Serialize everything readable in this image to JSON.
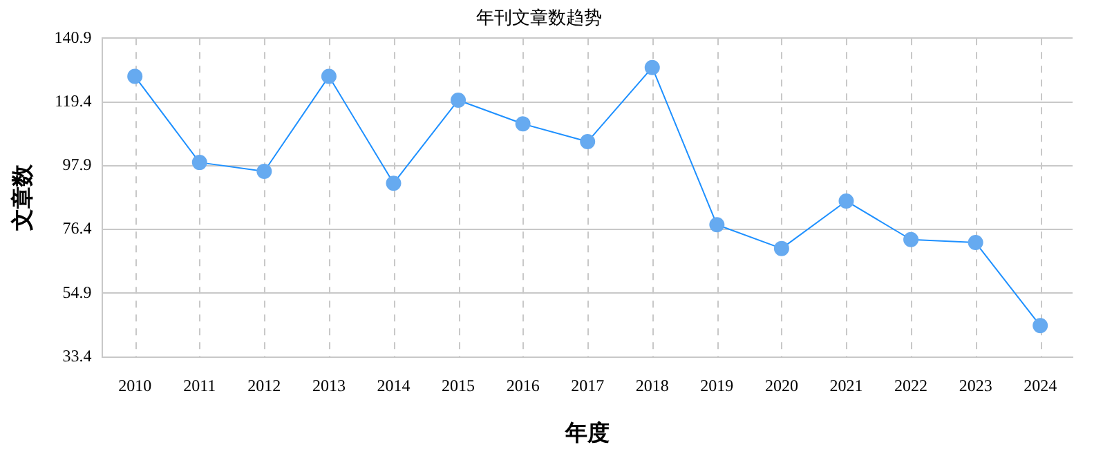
{
  "chart_data": {
    "type": "line",
    "title": "年刊文章数趋势",
    "xlabel": "年度",
    "ylabel": "文章数",
    "categories": [
      "2010",
      "2011",
      "2012",
      "2013",
      "2014",
      "2015",
      "2016",
      "2017",
      "2018",
      "2019",
      "2020",
      "2021",
      "2022",
      "2023",
      "2024"
    ],
    "series": [
      {
        "color": "#1e90ff",
        "values": [
          128,
          99,
          96,
          128,
          92,
          120,
          112,
          106,
          131,
          78,
          70,
          86,
          73,
          72,
          44
        ]
      }
    ],
    "ylim": [
      33.4,
      140.9
    ],
    "yticks": [
      33.4,
      54.9,
      76.4,
      97.9,
      119.4,
      140.9
    ],
    "grid": true,
    "legend": false,
    "marker": "circle",
    "line_style": "solid"
  }
}
